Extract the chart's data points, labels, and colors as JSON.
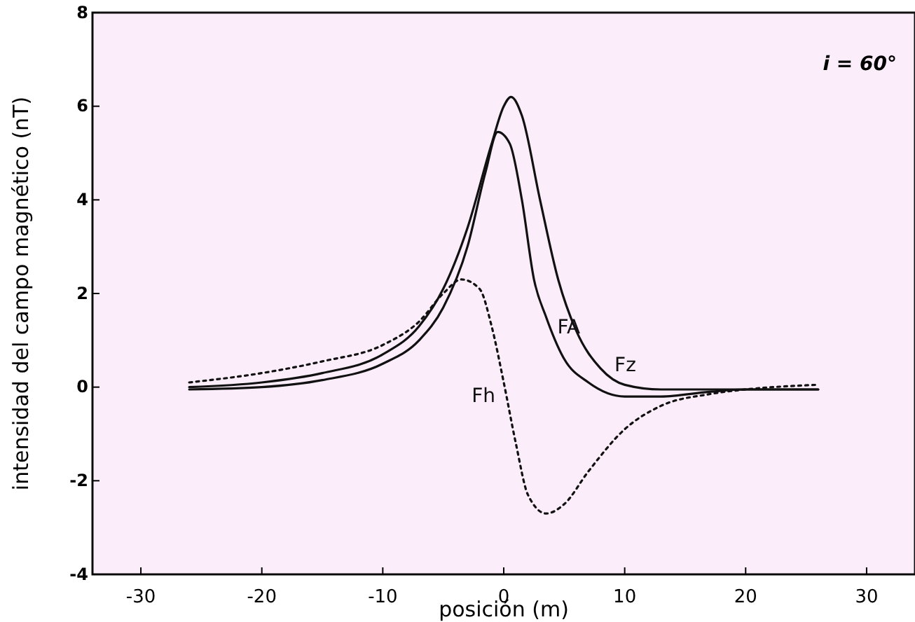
{
  "chart_data": {
    "type": "line",
    "xlabel": "posición (m)",
    "ylabel": "intensidad del campo magnético (nT)",
    "xlim": [
      -34,
      34
    ],
    "ylim": [
      -4,
      8
    ],
    "xticks": [
      -30,
      -20,
      -10,
      0,
      10,
      20,
      30
    ],
    "yticks": [
      -4,
      -2,
      0,
      2,
      4,
      6,
      8
    ],
    "grid": false,
    "marker": "none",
    "series": [
      {
        "name": "FA",
        "color": "#111111",
        "line_style": "solid",
        "x": [
          -26,
          -20,
          -15,
          -10,
          -7,
          -5,
          -3,
          -1.5,
          -0.5,
          0.5,
          1.5,
          2.5,
          3.5,
          5,
          7,
          10,
          13,
          17,
          20,
          26
        ],
        "values": [
          -0.05,
          0,
          0.15,
          0.5,
          1,
          1.7,
          3,
          4.6,
          5.45,
          5.2,
          4,
          2.3,
          1.5,
          0.6,
          0.1,
          -0.2,
          -0.2,
          -0.1,
          -0.05,
          -0.05
        ]
      },
      {
        "name": "Fz",
        "color": "#111111",
        "line_style": "solid",
        "x": [
          -26,
          -20,
          -15,
          -10,
          -7,
          -5,
          -3,
          -1,
          0,
          0.6,
          1.5,
          3,
          4.5,
          6,
          8,
          10,
          13,
          17,
          20,
          26
        ],
        "values": [
          0,
          0.1,
          0.3,
          0.7,
          1.3,
          2.1,
          3.4,
          5.2,
          6,
          6.2,
          5.8,
          4,
          2.3,
          1.2,
          0.4,
          0.05,
          -0.05,
          -0.05,
          -0.05,
          -0.05
        ]
      },
      {
        "name": "Fh",
        "color": "#111111",
        "line_style": "dotted",
        "x": [
          -26,
          -20,
          -15,
          -10,
          -7,
          -5,
          -3.5,
          -2,
          -1,
          0,
          1,
          2,
          3.5,
          5,
          7,
          10,
          13,
          17,
          20,
          26
        ],
        "values": [
          0.1,
          0.3,
          0.55,
          0.9,
          1.4,
          2,
          2.3,
          2.1,
          1.3,
          0.1,
          -1.2,
          -2.3,
          -2.7,
          -2.5,
          -1.8,
          -0.9,
          -0.4,
          -0.15,
          -0.05,
          0.05
        ]
      }
    ],
    "annotations": [
      "i = 60°"
    ]
  }
}
